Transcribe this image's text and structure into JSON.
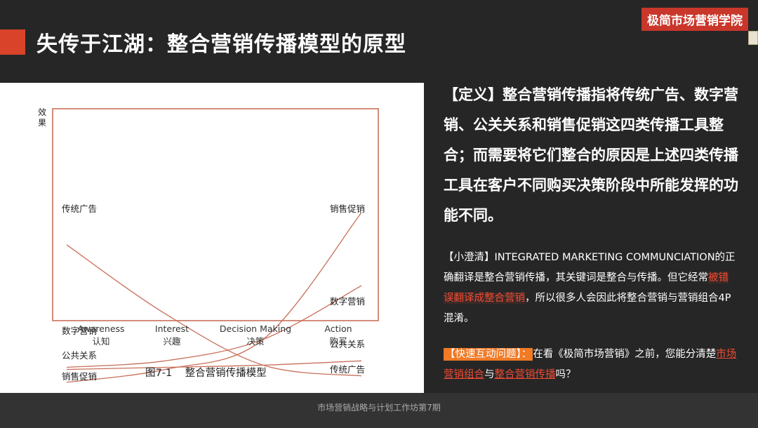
{
  "header": {
    "title": "失传于江湖：整合营销传播模型的原型",
    "brand": "极简市场营销学院"
  },
  "definition": {
    "lead": "【定义】",
    "text": "整合营销传播指将传统广告、数字营销、公关关系和销售促销这四类传播工具整合；而需要将它们整合的原因是上述四类传播工具在客户不同购买决策阶段中所能发挥的功能不同。"
  },
  "clarification": {
    "prefix": "【小澄清】INTEGRATED MARKETING COMMUNCIATION的正确翻译是整合营销传播，其关键词是整合与传播。但它经常",
    "highlight": "被错误翻译成整合营销",
    "suffix": "，所以很多人会因此将整合营销与营销组合4P混淆。"
  },
  "question": {
    "tag": "【快速互动问题】：",
    "text1": "在看《极简市场营销》之前，您能分清楚",
    "term1": "市场营销组合",
    "text2": "与",
    "term2": "整合营销传播",
    "text3": "吗？"
  },
  "footer": {
    "text": "市场营销战略与计划工作坊第7期"
  },
  "colors": {
    "accent": "#d9432a",
    "curve": "#c8705a",
    "brand_bg": "#c9372b",
    "highlight": "#f04a32",
    "tag_bg": "#f07a26"
  },
  "chart_data": {
    "type": "line",
    "caption": "图7-1    整合营销传播模型",
    "ylabel": "效果",
    "categories": [
      {
        "en": "Awareness",
        "zh": "认知"
      },
      {
        "en": "Interest",
        "zh": "兴趣"
      },
      {
        "en": "Decision Making",
        "zh": "决策"
      },
      {
        "en": "Action",
        "zh": "购买"
      }
    ],
    "series": [
      {
        "name": "传统广告",
        "start_label": "传统广告",
        "end_label": "传统广告",
        "values": [
          6.5,
          3.3,
          0.9,
          0.4
        ]
      },
      {
        "name": "数字营销",
        "start_label": "数字营销",
        "end_label": "数字营销",
        "values": [
          0.8,
          1.1,
          2.1,
          4.6
        ]
      },
      {
        "name": "公共关系",
        "start_label": "公共关系",
        "end_label": "公共关系",
        "values": [
          0.7,
          0.8,
          0.9,
          1.1
        ]
      },
      {
        "name": "销售促销",
        "start_label": "销售促销",
        "end_label": "销售促销",
        "values": [
          0.1,
          0.7,
          2.1,
          8.0
        ]
      }
    ],
    "grid": false,
    "legend": "inline"
  }
}
